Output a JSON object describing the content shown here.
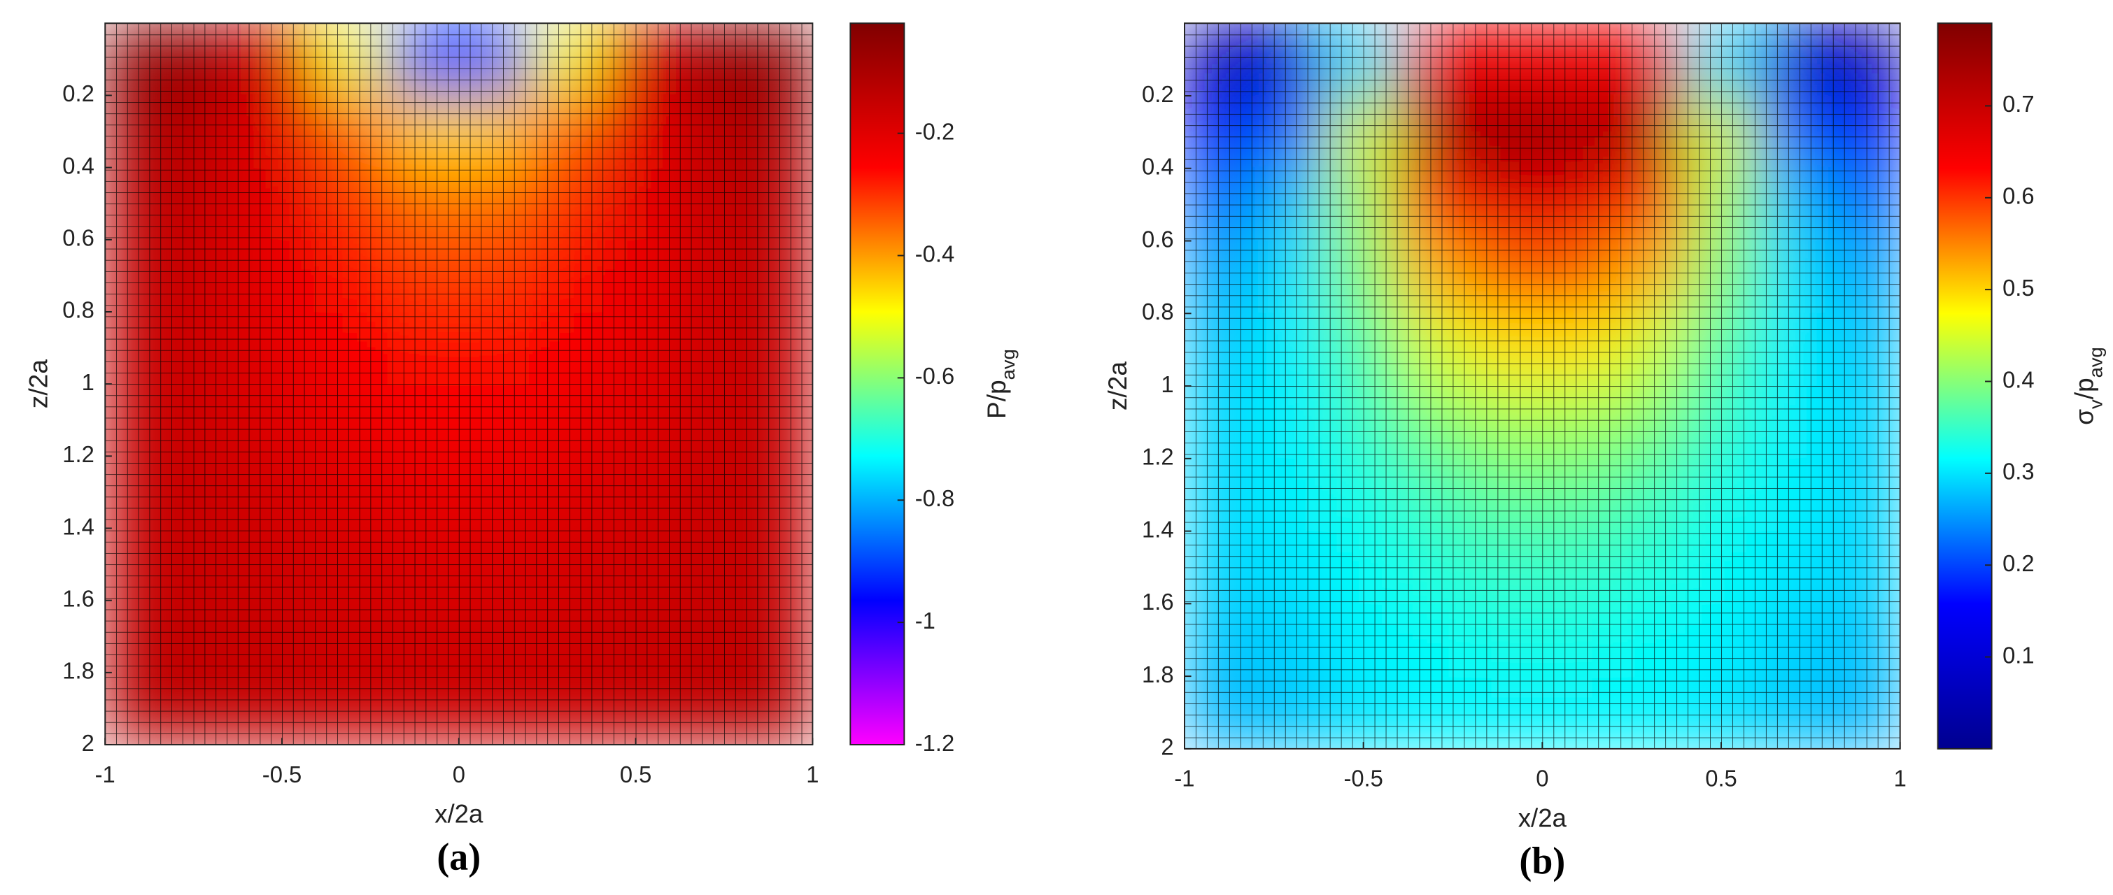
{
  "chart_data": [
    {
      "type": "heatmap",
      "panel_label": "(a)",
      "xlabel": "x/2a",
      "ylabel": "z/2a",
      "colorbar_label": [
        {
          "text": "P/p"
        },
        {
          "text": "avg",
          "sub": true
        }
      ],
      "x": [
        -0.9,
        -0.7,
        -0.5,
        -0.3,
        -0.1,
        0.1,
        0.3,
        0.5,
        0.7,
        0.9
      ],
      "y": [
        0.1,
        0.3,
        0.5,
        0.7,
        0.9,
        1.1,
        1.3,
        1.5,
        1.7,
        1.9
      ],
      "z": [
        [
          -0.05,
          -0.08,
          -0.2,
          -0.5,
          -0.9,
          -0.9,
          -0.5,
          -0.2,
          -0.08,
          -0.05
        ],
        [
          -0.1,
          -0.14,
          -0.22,
          -0.35,
          -0.45,
          -0.45,
          -0.35,
          -0.22,
          -0.14,
          -0.1
        ],
        [
          -0.13,
          -0.16,
          -0.22,
          -0.3,
          -0.36,
          -0.36,
          -0.3,
          -0.22,
          -0.16,
          -0.13
        ],
        [
          -0.14,
          -0.17,
          -0.22,
          -0.27,
          -0.31,
          -0.31,
          -0.27,
          -0.22,
          -0.17,
          -0.14
        ],
        [
          -0.15,
          -0.17,
          -0.21,
          -0.25,
          -0.27,
          -0.27,
          -0.25,
          -0.21,
          -0.17,
          -0.15
        ],
        [
          -0.15,
          -0.17,
          -0.2,
          -0.22,
          -0.24,
          -0.24,
          -0.22,
          -0.2,
          -0.17,
          -0.15
        ],
        [
          -0.15,
          -0.16,
          -0.18,
          -0.2,
          -0.21,
          -0.21,
          -0.2,
          -0.18,
          -0.16,
          -0.15
        ],
        [
          -0.15,
          -0.16,
          -0.17,
          -0.18,
          -0.19,
          -0.19,
          -0.18,
          -0.17,
          -0.16,
          -0.15
        ],
        [
          -0.14,
          -0.15,
          -0.16,
          -0.17,
          -0.17,
          -0.17,
          -0.17,
          -0.16,
          -0.15,
          -0.14
        ],
        [
          -0.13,
          -0.14,
          -0.15,
          -0.16,
          -0.16,
          -0.16,
          -0.16,
          -0.15,
          -0.14,
          -0.13
        ]
      ],
      "xlim": [
        -1,
        1
      ],
      "xticks": [
        -1,
        -0.5,
        0,
        0.5,
        1
      ],
      "ylim": [
        2,
        0
      ],
      "yticks": [
        0.2,
        0.4,
        0.6,
        0.8,
        1,
        1.2,
        1.4,
        1.6,
        1.8,
        2
      ],
      "clim": [
        -1.2,
        -0.02
      ],
      "cticks": [
        -1.2,
        -1,
        -0.8,
        -0.6,
        -0.4,
        -0.2
      ],
      "colormap": [
        "#ff00ff",
        "#0000ff",
        "#00ffff",
        "#ffff00",
        "#ff0000",
        "#800000"
      ]
    },
    {
      "type": "heatmap",
      "panel_label": "(b)",
      "xlabel": "x/2a",
      "ylabel": "z/2a",
      "colorbar_label": [
        {
          "text": "σ"
        },
        {
          "text": "v",
          "sub": true
        },
        {
          "text": "/p"
        },
        {
          "text": "avg",
          "sub": true
        }
      ],
      "x": [
        -0.9,
        -0.7,
        -0.5,
        -0.3,
        -0.1,
        0.1,
        0.3,
        0.5,
        0.7,
        0.9
      ],
      "y": [
        0.1,
        0.3,
        0.5,
        0.7,
        0.9,
        1.1,
        1.3,
        1.5,
        1.7,
        1.9
      ],
      "z": [
        [
          0.05,
          0.1,
          0.3,
          0.65,
          0.65,
          0.65,
          0.65,
          0.3,
          0.1,
          0.05
        ],
        [
          0.15,
          0.22,
          0.45,
          0.72,
          0.76,
          0.74,
          0.72,
          0.45,
          0.22,
          0.15
        ],
        [
          0.22,
          0.28,
          0.42,
          0.6,
          0.66,
          0.66,
          0.6,
          0.42,
          0.28,
          0.22
        ],
        [
          0.26,
          0.3,
          0.4,
          0.52,
          0.57,
          0.57,
          0.52,
          0.4,
          0.3,
          0.26
        ],
        [
          0.28,
          0.31,
          0.37,
          0.45,
          0.49,
          0.49,
          0.45,
          0.37,
          0.31,
          0.28
        ],
        [
          0.29,
          0.31,
          0.35,
          0.4,
          0.42,
          0.42,
          0.4,
          0.35,
          0.31,
          0.29
        ],
        [
          0.29,
          0.31,
          0.33,
          0.36,
          0.38,
          0.38,
          0.36,
          0.33,
          0.31,
          0.29
        ],
        [
          0.29,
          0.3,
          0.32,
          0.34,
          0.35,
          0.35,
          0.34,
          0.32,
          0.3,
          0.29
        ],
        [
          0.28,
          0.29,
          0.31,
          0.32,
          0.33,
          0.33,
          0.32,
          0.31,
          0.29,
          0.28
        ],
        [
          0.27,
          0.28,
          0.3,
          0.31,
          0.31,
          0.31,
          0.31,
          0.3,
          0.28,
          0.27
        ]
      ],
      "xlim": [
        -1,
        1
      ],
      "xticks": [
        -1,
        -0.5,
        0,
        0.5,
        1
      ],
      "ylim": [
        2,
        0
      ],
      "yticks": [
        0.2,
        0.4,
        0.6,
        0.8,
        1,
        1.2,
        1.4,
        1.6,
        1.8,
        2
      ],
      "clim": [
        0,
        0.79
      ],
      "cticks": [
        0.1,
        0.2,
        0.3,
        0.4,
        0.5,
        0.6,
        0.7
      ],
      "colormap": [
        "#00008f",
        "#0000ff",
        "#00ffff",
        "#ffff00",
        "#ff0000",
        "#800000"
      ]
    }
  ]
}
